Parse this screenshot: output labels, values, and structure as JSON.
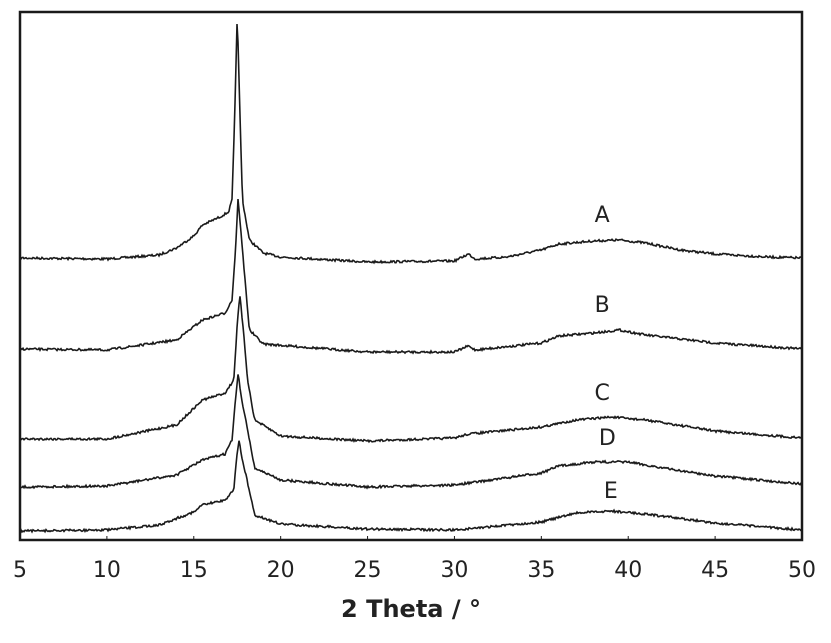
{
  "chart_data": {
    "type": "line",
    "title": "",
    "xlabel": "2 Theta / °",
    "ylabel": "",
    "xlim": [
      5,
      50
    ],
    "ylim": [
      0,
      528
    ],
    "y_units": "arbitrary (stacked intensity, no y-axis scale shown)",
    "grid": false,
    "legend": "none (series labelled inline)",
    "line_color": "#1a1a1a",
    "x_ticks": [
      "5",
      "10",
      "15",
      "20",
      "25",
      "30",
      "35",
      "40",
      "45",
      "50"
    ],
    "series": [
      {
        "name": "A",
        "points": [
          [
            5,
            282
          ],
          [
            10,
            281
          ],
          [
            13,
            285
          ],
          [
            14,
            292
          ],
          [
            15,
            304
          ],
          [
            15.5,
            315
          ],
          [
            16.5,
            323
          ],
          [
            17,
            328
          ],
          [
            17.2,
            340
          ],
          [
            17.35,
            420
          ],
          [
            17.5,
            526
          ],
          [
            17.65,
            430
          ],
          [
            17.8,
            340
          ],
          [
            18.2,
            300
          ],
          [
            19,
            287
          ],
          [
            20,
            283
          ],
          [
            25,
            278
          ],
          [
            30,
            279
          ],
          [
            30.8,
            286
          ],
          [
            31.2,
            281
          ],
          [
            33,
            283
          ],
          [
            35,
            290
          ],
          [
            36,
            296
          ],
          [
            38,
            299
          ],
          [
            39.5,
            300
          ],
          [
            41,
            297
          ],
          [
            43,
            290
          ],
          [
            45,
            286
          ],
          [
            48,
            283
          ],
          [
            50,
            282
          ]
        ]
      },
      {
        "name": "B",
        "points": [
          [
            5,
            191
          ],
          [
            10,
            190
          ],
          [
            14,
            200
          ],
          [
            15.5,
            220
          ],
          [
            16.8,
            227
          ],
          [
            17.2,
            240
          ],
          [
            17.4,
            290
          ],
          [
            17.55,
            342
          ],
          [
            17.8,
            290
          ],
          [
            18.2,
            210
          ],
          [
            19,
            196
          ],
          [
            25,
            188
          ],
          [
            30,
            188
          ],
          [
            30.8,
            194
          ],
          [
            31.2,
            190
          ],
          [
            35,
            197
          ],
          [
            36,
            204
          ],
          [
            38,
            207
          ],
          [
            39.5,
            210
          ],
          [
            41,
            205
          ],
          [
            45,
            197
          ],
          [
            50,
            191
          ]
        ]
      },
      {
        "name": "C",
        "points": [
          [
            5,
            101
          ],
          [
            10,
            101
          ],
          [
            14,
            115
          ],
          [
            15.5,
            140
          ],
          [
            16.8,
            147
          ],
          [
            17.3,
            160
          ],
          [
            17.5,
            215
          ],
          [
            17.65,
            245
          ],
          [
            17.85,
            210
          ],
          [
            18.1,
            160
          ],
          [
            18.5,
            120
          ],
          [
            20,
            104
          ],
          [
            25,
            99
          ],
          [
            30,
            102
          ],
          [
            30.8,
            106
          ],
          [
            35,
            113
          ],
          [
            37,
            120
          ],
          [
            39,
            123
          ],
          [
            41,
            120
          ],
          [
            45,
            109
          ],
          [
            50,
            102
          ]
        ]
      },
      {
        "name": "D",
        "points": [
          [
            5,
            53
          ],
          [
            10,
            54
          ],
          [
            14,
            65
          ],
          [
            15.5,
            80
          ],
          [
            16.8,
            86
          ],
          [
            17.2,
            100
          ],
          [
            17.4,
            140
          ],
          [
            17.55,
            167
          ],
          [
            17.75,
            140
          ],
          [
            18,
            120
          ],
          [
            18.5,
            72
          ],
          [
            20,
            60
          ],
          [
            25,
            53
          ],
          [
            30,
            55
          ],
          [
            35,
            67
          ],
          [
            36,
            74
          ],
          [
            38,
            78
          ],
          [
            40,
            78
          ],
          [
            42,
            72
          ],
          [
            45,
            64
          ],
          [
            50,
            56
          ]
        ]
      },
      {
        "name": "E",
        "points": [
          [
            5,
            9
          ],
          [
            10,
            10
          ],
          [
            13,
            15
          ],
          [
            15,
            28
          ],
          [
            15.5,
            35
          ],
          [
            16.8,
            40
          ],
          [
            17.3,
            50
          ],
          [
            17.45,
            80
          ],
          [
            17.6,
            100
          ],
          [
            17.8,
            80
          ],
          [
            18,
            65
          ],
          [
            18.5,
            25
          ],
          [
            20,
            16
          ],
          [
            25,
            11
          ],
          [
            30,
            10
          ],
          [
            35,
            18
          ],
          [
            37,
            27
          ],
          [
            39,
            29
          ],
          [
            41,
            26
          ],
          [
            45,
            17
          ],
          [
            50,
            10
          ]
        ]
      }
    ]
  }
}
